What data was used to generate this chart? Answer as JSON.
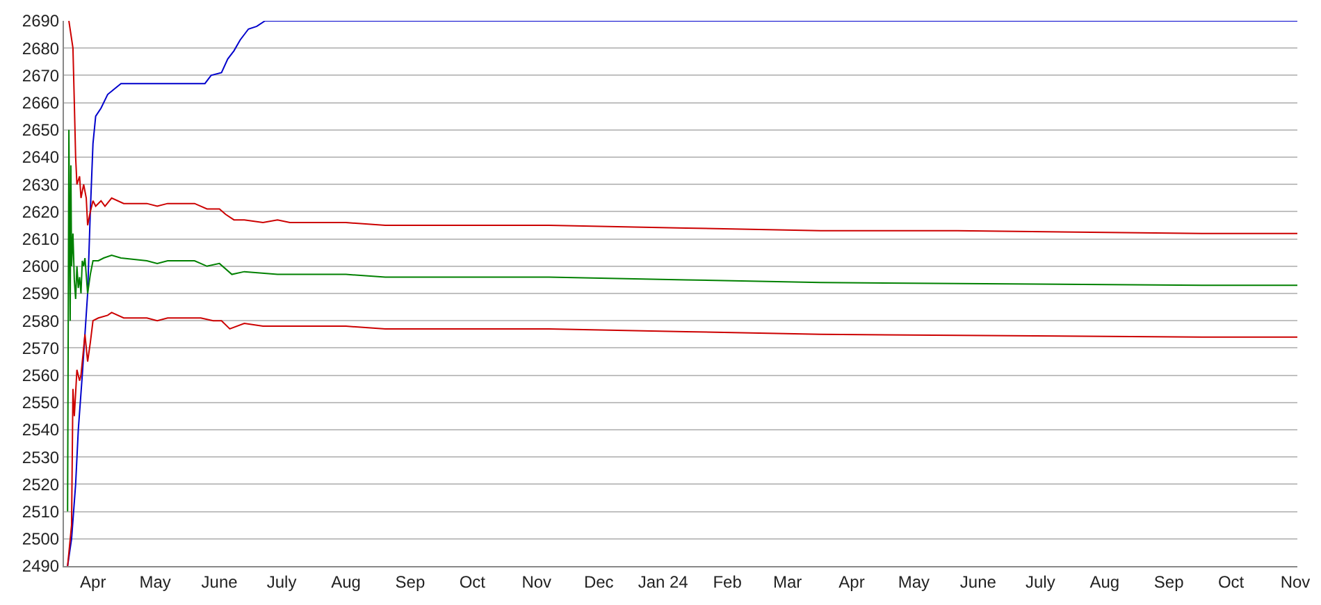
{
  "chart_data": {
    "type": "line",
    "ylim": [
      2490,
      2690
    ],
    "yticks": [
      2490,
      2500,
      2510,
      2520,
      2530,
      2540,
      2550,
      2560,
      2570,
      2580,
      2590,
      2600,
      2610,
      2620,
      2630,
      2640,
      2650,
      2660,
      2670,
      2680,
      2690
    ],
    "xlim": [
      "2023-03-18",
      "2024-11-02"
    ],
    "xticks": [
      {
        "value": "2023-04-01",
        "label": "Apr"
      },
      {
        "value": "2023-05-01",
        "label": "May"
      },
      {
        "value": "2023-06-01",
        "label": "June"
      },
      {
        "value": "2023-07-01",
        "label": "July"
      },
      {
        "value": "2023-08-01",
        "label": "Aug"
      },
      {
        "value": "2023-09-01",
        "label": "Sep"
      },
      {
        "value": "2023-10-01",
        "label": "Oct"
      },
      {
        "value": "2023-11-01",
        "label": "Nov"
      },
      {
        "value": "2023-12-01",
        "label": "Dec"
      },
      {
        "value": "2024-01-01",
        "label": "Jan 24"
      },
      {
        "value": "2024-02-01",
        "label": "Feb"
      },
      {
        "value": "2024-03-01",
        "label": "Mar"
      },
      {
        "value": "2024-04-01",
        "label": "Apr"
      },
      {
        "value": "2024-05-01",
        "label": "May"
      },
      {
        "value": "2024-06-01",
        "label": "June"
      },
      {
        "value": "2024-07-01",
        "label": "July"
      },
      {
        "value": "2024-08-01",
        "label": "Aug"
      },
      {
        "value": "2024-09-01",
        "label": "Sep"
      },
      {
        "value": "2024-10-01",
        "label": "Oct"
      },
      {
        "value": "2024-11-01",
        "label": "Nov"
      }
    ],
    "grid": "y",
    "marker": "none",
    "line_style": "solid",
    "series": [
      {
        "color": "#0000cc",
        "x": [
          "2023-03-19T18:00",
          "2023-03-21T16:00",
          "2023-03-23T15:00",
          "2023-03-24T22:00",
          "2023-03-26T20:00",
          "2023-03-28T03:00",
          "2023-03-29T10:00",
          "2023-03-30T17:00",
          "2023-04-01",
          "2023-04-02T07:00",
          "2023-04-04T21:00",
          "2023-04-08T02:00",
          "2023-04-11T07:00",
          "2023-04-14T12:00",
          "2023-05-25",
          "2023-05-28",
          "2023-06-02",
          "2023-06-05",
          "2023-06-08",
          "2023-06-11",
          "2023-06-15",
          "2023-06-19",
          "2023-06-23",
          "2024-11-02"
        ],
        "values": [
          2490,
          2500,
          2520,
          2540,
          2560,
          2575,
          2590,
          2620,
          2645,
          2655,
          2658,
          2663,
          2665,
          2667,
          2667,
          2670,
          2671,
          2676,
          2679,
          2683,
          2687,
          2688,
          2690,
          2690
        ]
      },
      {
        "color": "#cc0000",
        "x": [
          "2023-03-20T09:00",
          "2023-03-22T08:00",
          "2023-03-23T00:00",
          "2023-03-23T15:00",
          "2023-03-24T06:00",
          "2023-03-25T13:00",
          "2023-03-26T05:00",
          "2023-03-27T12:00",
          "2023-03-28T18:00",
          "2023-03-29T10:00",
          "2023-03-30T17:00",
          "2023-04-01",
          "2023-04-02T07:00",
          "2023-04-04T21:00",
          "2023-04-06T19:00",
          "2023-04-10",
          "2023-04-15T20:00",
          "2023-04-27",
          "2023-05-02",
          "2023-05-07",
          "2023-05-20",
          "2023-05-26",
          "2023-06-01",
          "2023-06-04",
          "2023-06-08",
          "2023-06-13",
          "2023-06-22",
          "2023-06-29",
          "2023-07-05",
          "2023-08-01",
          "2023-08-20",
          "2023-09-15",
          "2023-11-07",
          "2024-01-12",
          "2024-03-17",
          "2024-05-22",
          "2024-09-17",
          "2024-11-02"
        ],
        "values": [
          2690,
          2680,
          2660,
          2640,
          2630,
          2633,
          2625,
          2630,
          2625,
          2615,
          2620,
          2624,
          2622,
          2624,
          2622,
          2625,
          2623,
          2623,
          2622,
          2623,
          2623,
          2621,
          2621,
          2619,
          2617,
          2617,
          2616,
          2617,
          2616,
          2616,
          2615,
          2615,
          2615,
          2614,
          2613,
          2613,
          2612,
          2612
        ]
      },
      {
        "color": "#008000",
        "x": [
          "2023-03-19T18:00",
          "2023-03-20T09:00",
          "2023-03-21T00:00",
          "2023-03-21T08:00",
          "2023-03-21T16:00",
          "2023-03-22T08:00",
          "2023-03-23T00:00",
          "2023-03-23T15:00",
          "2023-03-24T06:00",
          "2023-03-24T22:00",
          "2023-03-25T13:00",
          "2023-03-26T05:00",
          "2023-03-26T20:00",
          "2023-03-27T12:00",
          "2023-03-28T03:00",
          "2023-03-29T10:00",
          "2023-03-30T17:00",
          "2023-04-01",
          "2023-04-03T14:00",
          "2023-04-06T04:00",
          "2023-04-10",
          "2023-04-14T12:00",
          "2023-04-27",
          "2023-05-02",
          "2023-05-07",
          "2023-05-20",
          "2023-05-26",
          "2023-06-01",
          "2023-06-07",
          "2023-06-13",
          "2023-06-29",
          "2023-08-01",
          "2023-08-20",
          "2023-09-15",
          "2023-11-07",
          "2024-01-12",
          "2024-03-17",
          "2024-09-17",
          "2024-11-02"
        ],
        "values": [
          2510,
          2650,
          2580,
          2637,
          2600,
          2612,
          2595,
          2588,
          2600,
          2592,
          2596,
          2590,
          2602,
          2600,
          2603,
          2590,
          2597,
          2602,
          2602,
          2603,
          2604,
          2603,
          2602,
          2601,
          2602,
          2602,
          2600,
          2601,
          2597,
          2598,
          2597,
          2597,
          2596,
          2596,
          2596,
          2595,
          2594,
          2593,
          2593
        ]
      },
      {
        "color": "#cc0000",
        "x": [
          "2023-03-19T18:00",
          "2023-03-21T16:00",
          "2023-03-22T08:00",
          "2023-03-23T00:00",
          "2023-03-24T06:00",
          "2023-03-25T13:00",
          "2023-03-26T05:00",
          "2023-03-27T12:00",
          "2023-03-28T03:00",
          "2023-03-29T10:00",
          "2023-03-30T17:00",
          "2023-04-01",
          "2023-04-03T14:00",
          "2023-04-08T02:00",
          "2023-04-10",
          "2023-04-15T20:00",
          "2023-04-27",
          "2023-05-02",
          "2023-05-07",
          "2023-05-23",
          "2023-05-29",
          "2023-06-02",
          "2023-06-06",
          "2023-06-13",
          "2023-06-22",
          "2023-08-01",
          "2023-08-20",
          "2023-09-15",
          "2023-11-07",
          "2024-01-12",
          "2024-03-17",
          "2024-09-17",
          "2024-11-02"
        ],
        "values": [
          2490,
          2505,
          2555,
          2545,
          2562,
          2558,
          2560,
          2570,
          2575,
          2565,
          2572,
          2580,
          2581,
          2582,
          2583,
          2581,
          2581,
          2580,
          2581,
          2581,
          2580,
          2580,
          2577,
          2579,
          2578,
          2578,
          2577,
          2577,
          2577,
          2576,
          2575,
          2574,
          2574
        ]
      }
    ]
  }
}
